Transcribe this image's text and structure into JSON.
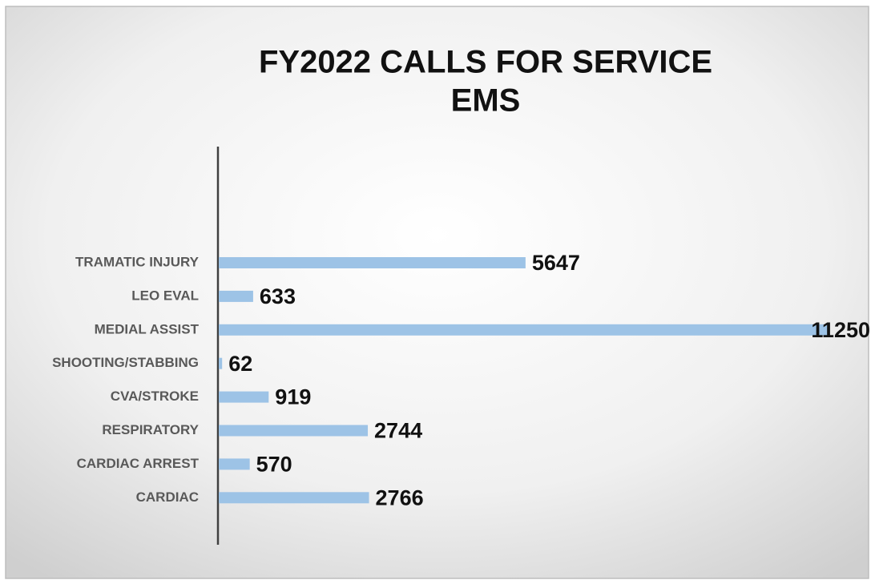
{
  "chart_data": {
    "type": "barh",
    "title": [
      "FY2022 CALLS FOR SERVICE",
      "EMS"
    ],
    "categories": [
      "TRAMATIC INJURY",
      "LEO EVAL",
      "MEDIAL ASSIST",
      "SHOOTING/STABBING",
      "CVA/STROKE",
      "RESPIRATORY",
      "CARDIAC ARREST",
      "CARDIAC"
    ],
    "values": [
      5647,
      633,
      11250,
      62,
      919,
      2744,
      570,
      2766
    ],
    "color": "#9dc3e6"
  }
}
